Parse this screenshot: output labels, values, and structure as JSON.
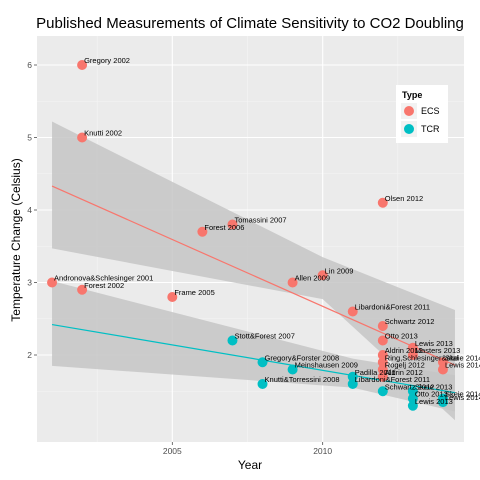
{
  "chart_data": {
    "type": "scatter",
    "title": "Published Measurements of Climate Sensitivity to CO2 Doubling",
    "xlabel": "Year",
    "ylabel": "Temperature Change (Celsius)",
    "xlim": [
      2000.5,
      2014.7
    ],
    "ylim": [
      0.8,
      6.4
    ],
    "x_ticks": [
      2005,
      2010
    ],
    "y_ticks": [
      2,
      3,
      4,
      5,
      6
    ],
    "grid": true,
    "legend": {
      "title": "Type",
      "position": "right-inside",
      "entries": [
        {
          "label": "ECS",
          "color": "#F8766D"
        },
        {
          "label": "TCR",
          "color": "#00BFC4"
        }
      ]
    },
    "colors": {
      "ECS": "#F8766D",
      "TCR": "#00BFC4",
      "panel": "#ebebeb",
      "band": "#c6c6c6"
    },
    "series": [
      {
        "name": "ECS",
        "points": [
          {
            "x": 2001,
            "y": 3.0,
            "label": "Andronova&Schlesinger 2001"
          },
          {
            "x": 2002,
            "y": 6.0,
            "label": "Gregory 2002"
          },
          {
            "x": 2002,
            "y": 5.0,
            "label": "Knutti 2002"
          },
          {
            "x": 2002,
            "y": 2.9,
            "label": "Forest 2002"
          },
          {
            "x": 2005,
            "y": 2.8,
            "label": "Frame 2005"
          },
          {
            "x": 2006,
            "y": 3.7,
            "label": "Forest 2006"
          },
          {
            "x": 2007,
            "y": 3.8,
            "label": "Tomassini 2007"
          },
          {
            "x": 2009,
            "y": 3.0,
            "label": "Allen 2009"
          },
          {
            "x": 2010,
            "y": 3.1,
            "label": "Lin 2009"
          },
          {
            "x": 2011,
            "y": 2.6,
            "label": "Libardoni&Forest 2011"
          },
          {
            "x": 2012,
            "y": 4.1,
            "label": "Olsen 2012"
          },
          {
            "x": 2012,
            "y": 2.4,
            "label": "Schwartz 2012"
          },
          {
            "x": 2012,
            "y": 2.2,
            "label": "Otto 2013"
          },
          {
            "x": 2012,
            "y": 2.0,
            "label": "Aldrin 2012"
          },
          {
            "x": 2012,
            "y": 1.9,
            "label": "Ring,Schlesinger&etal"
          },
          {
            "x": 2012,
            "y": 1.8,
            "label": "Rogelj 2012"
          },
          {
            "x": 2012,
            "y": 1.7,
            "label": "Aldrin 2012"
          },
          {
            "x": 2013,
            "y": 2.1,
            "label": "Lewis 2013"
          },
          {
            "x": 2013,
            "y": 2.0,
            "label": "Masters 2013"
          },
          {
            "x": 2014,
            "y": 1.9,
            "label": "Skeie 2014"
          },
          {
            "x": 2014,
            "y": 1.8,
            "label": "Lewis 2014"
          }
        ],
        "trend": {
          "x": [
            2001,
            2014.4
          ],
          "y": [
            4.33,
            1.86
          ]
        },
        "band": {
          "x": [
            2001,
            2010,
            2014.4
          ],
          "upper": [
            5.22,
            3.35,
            2.62
          ],
          "lower": [
            3.47,
            2.77,
            1.1
          ]
        }
      },
      {
        "name": "TCR",
        "points": [
          {
            "x": 2007,
            "y": 2.2,
            "label": "Stott&Forest 2007"
          },
          {
            "x": 2008,
            "y": 1.9,
            "label": "Gregory&Forster 2008"
          },
          {
            "x": 2008,
            "y": 1.6,
            "label": "Knutti&Torressini 2008"
          },
          {
            "x": 2009,
            "y": 1.8,
            "label": "Meinshausen 2009"
          },
          {
            "x": 2011,
            "y": 1.7,
            "label": "Padilla 2011"
          },
          {
            "x": 2011,
            "y": 1.6,
            "label": "Libardoni&Forest 2011"
          },
          {
            "x": 2012,
            "y": 1.5,
            "label": "Schwartz 2012"
          },
          {
            "x": 2013,
            "y": 1.5,
            "label": "Skeie 2013"
          },
          {
            "x": 2013,
            "y": 1.4,
            "label": "Otto 2013"
          },
          {
            "x": 2013,
            "y": 1.3,
            "label": "Lewis 2013"
          },
          {
            "x": 2014,
            "y": 1.4,
            "label": "Skeie 2014"
          },
          {
            "x": 2014,
            "y": 1.35,
            "label": "Lewis 2014"
          }
        ],
        "trend": {
          "x": [
            2001,
            2014.4
          ],
          "y": [
            2.42,
            1.48
          ]
        },
        "band": {
          "x": [
            2001,
            2011,
            2014.4
          ],
          "upper": [
            3.02,
            1.95,
            1.72
          ],
          "lower": [
            1.85,
            1.55,
            1.22
          ]
        }
      }
    ]
  }
}
